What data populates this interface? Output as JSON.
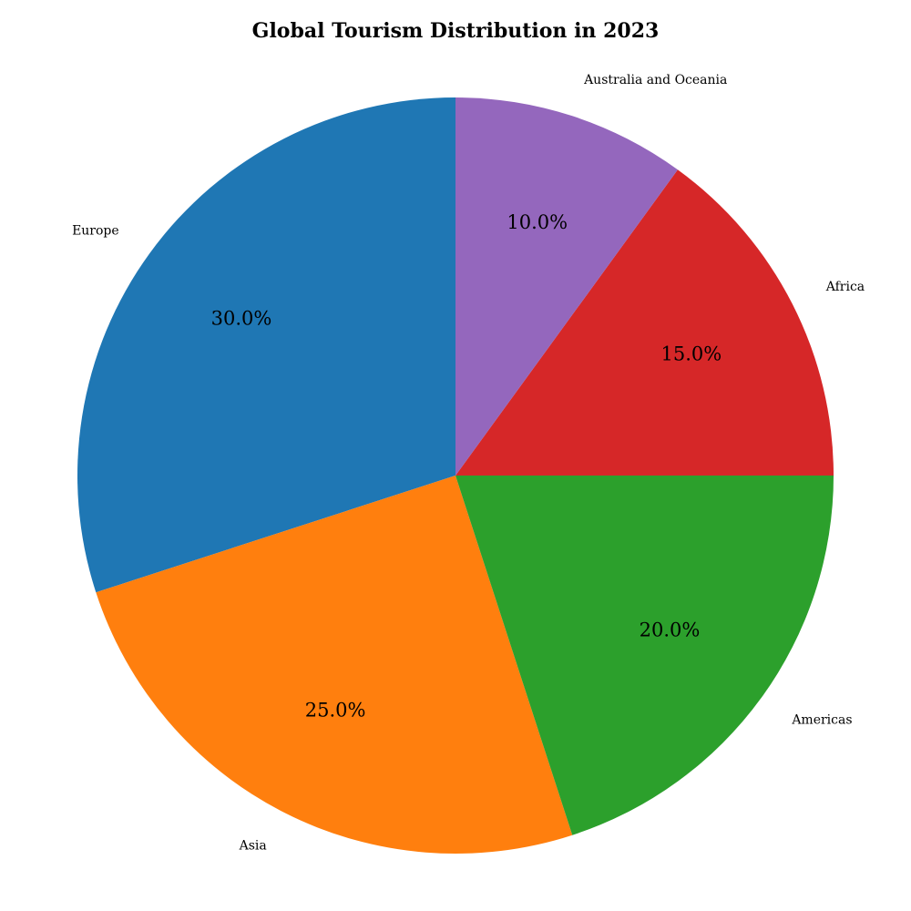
{
  "chart_data": {
    "type": "pie",
    "title": "Global Tourism Distribution in 2023",
    "start_angle_deg": 90,
    "direction": "counterclockwise",
    "slices": [
      {
        "label": "Europe",
        "value": 30.0,
        "percent_label": "30.0%",
        "color": "#1f77b4"
      },
      {
        "label": "Asia",
        "value": 25.0,
        "percent_label": "25.0%",
        "color": "#ff7f0e"
      },
      {
        "label": "Americas",
        "value": 20.0,
        "percent_label": "20.0%",
        "color": "#2ca02c"
      },
      {
        "label": "Africa",
        "value": 15.0,
        "percent_label": "15.0%",
        "color": "#d62728"
      },
      {
        "label": "Australia and Oceania",
        "value": 10.0,
        "percent_label": "10.0%",
        "color": "#9467bd"
      }
    ]
  }
}
